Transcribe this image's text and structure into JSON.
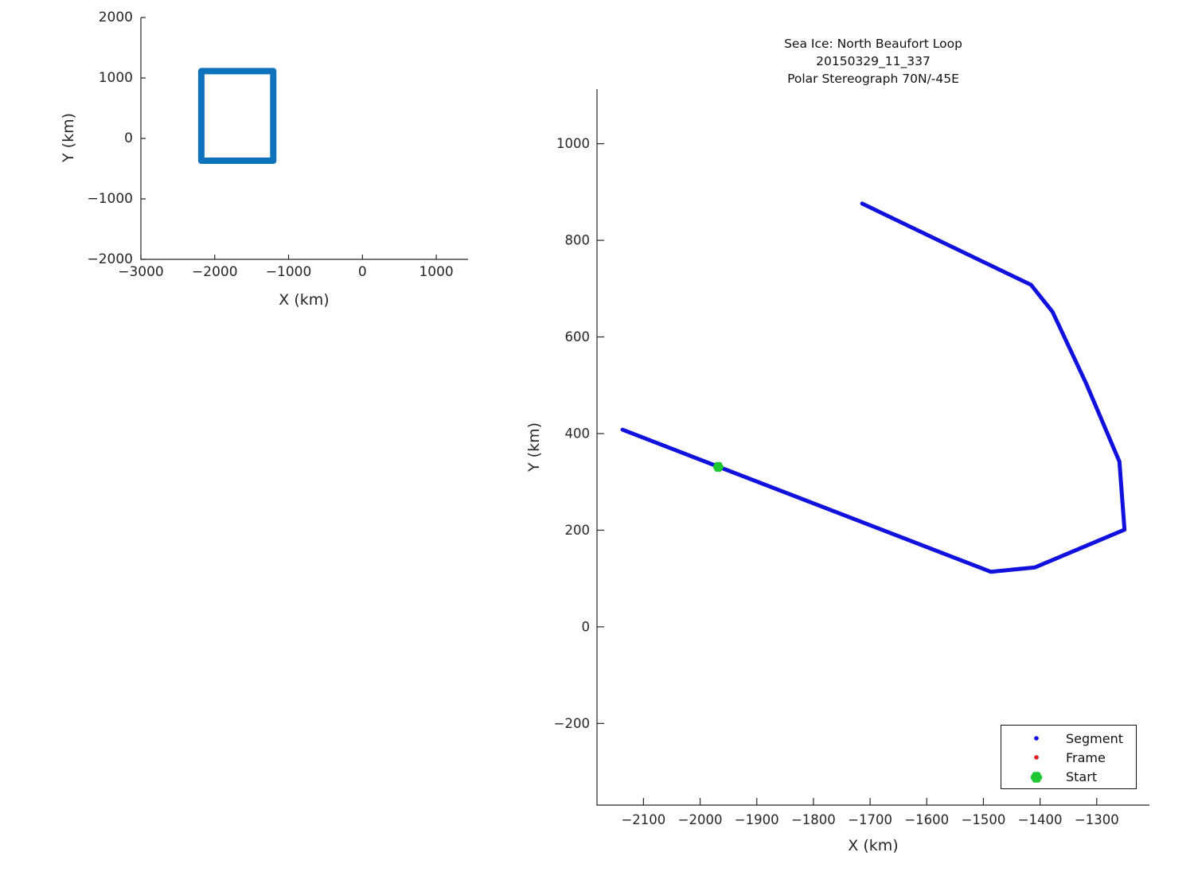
{
  "figure": {
    "background": "#ffffff",
    "axis_color": "#262626",
    "tick_label_color": "#262626",
    "title_color": "#111111",
    "legend_border_color": "#111111"
  },
  "chart_data": [
    {
      "id": "overview",
      "type": "line",
      "title": "",
      "xlabel": "X (km)",
      "ylabel": "Y (km)",
      "xlim": [
        -3000,
        1430
      ],
      "ylim": [
        -2000,
        2000
      ],
      "xticks": [
        -3000,
        -2000,
        -1000,
        0,
        1000
      ],
      "yticks": [
        -2000,
        -1000,
        0,
        1000,
        2000
      ],
      "grid": false,
      "legend": null,
      "series": [
        {
          "name": "region-outline",
          "color": "#0d73ba",
          "linewidth": 8,
          "x": [
            -2182,
            -1207,
            -1207,
            -2182,
            -2182
          ],
          "y": [
            -369,
            -369,
            1113,
            1113,
            -369
          ]
        }
      ]
    },
    {
      "id": "trajectory",
      "type": "line",
      "title_lines": [
        "Sea Ice: North Beaufort Loop",
        "20150329_11_337",
        "Polar Stereograph 70N/-45E"
      ],
      "xlabel": "X (km)",
      "ylabel": "Y (km)",
      "xlim": [
        -2182,
        -1207
      ],
      "ylim": [
        -369,
        1113
      ],
      "xticks": [
        -2100,
        -2000,
        -1900,
        -1800,
        -1700,
        -1600,
        -1500,
        -1400,
        -1300
      ],
      "yticks": [
        -200,
        0,
        200,
        400,
        600,
        800,
        1000
      ],
      "grid": false,
      "series": [
        {
          "name": "Segment",
          "color": "#1111dd",
          "linewidth": 5,
          "x": [
            -1714,
            -1416,
            -1378,
            -1318,
            -1260,
            -1251,
            -1409,
            -1487,
            -2137
          ],
          "y": [
            876,
            708,
            652,
            502,
            342,
            201,
            123,
            114,
            408
          ]
        }
      ],
      "start_marker": {
        "name": "Start",
        "color": "#1fc833",
        "x": -1968,
        "y": 331
      },
      "legend": {
        "position": "bottom-right",
        "entries": [
          {
            "label": "Segment",
            "marker": "dot",
            "color": "#1111dd"
          },
          {
            "label": "Frame",
            "marker": "dot",
            "color": "#e02020"
          },
          {
            "label": "Start",
            "marker": "clover",
            "color": "#1fc833"
          }
        ]
      }
    }
  ]
}
